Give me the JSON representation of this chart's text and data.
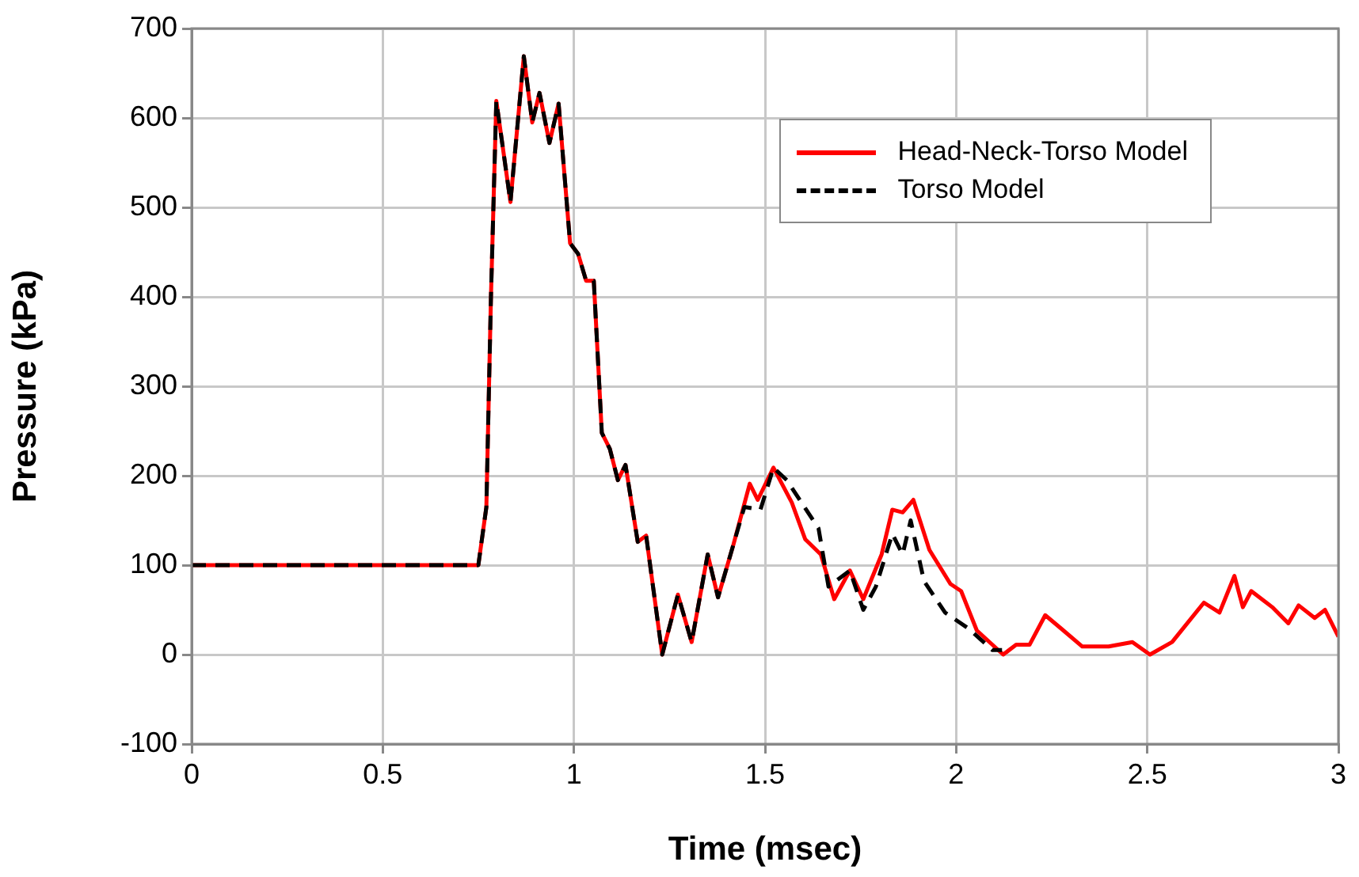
{
  "chart_data": {
    "type": "line",
    "xlabel": "Time (msec)",
    "ylabel": "Pressure (kPa)",
    "xlim": [
      0,
      3
    ],
    "xticks": [
      0,
      0.5,
      1,
      1.5,
      2,
      2.5,
      3
    ],
    "ylim": [
      -100,
      700
    ],
    "yticks": [
      -100,
      0,
      100,
      200,
      300,
      400,
      500,
      600,
      700
    ],
    "grid": true,
    "legend": "top right",
    "marker": "none",
    "series": [
      {
        "name": "Head-Neck-Torso Model",
        "color": "#ff0000",
        "line_style": "solid",
        "x": [
          0,
          0.75,
          0.771,
          0.783,
          0.797,
          0.834,
          0.869,
          0.891,
          0.91,
          0.936,
          0.96,
          0.99,
          1.011,
          1.032,
          1.052,
          1.073,
          1.094,
          1.115,
          1.135,
          1.167,
          1.189,
          1.231,
          1.272,
          1.308,
          1.35,
          1.377,
          1.418,
          1.46,
          1.481,
          1.522,
          1.57,
          1.605,
          1.646,
          1.681,
          1.722,
          1.757,
          1.805,
          1.833,
          1.86,
          1.888,
          1.93,
          1.985,
          2.013,
          2.054,
          2.123,
          2.157,
          2.192,
          2.233,
          2.275,
          2.33,
          2.399,
          2.461,
          2.507,
          2.565,
          2.648,
          2.689,
          2.728,
          2.75,
          2.772,
          2.827,
          2.869,
          2.896,
          2.938,
          2.965,
          3
        ],
        "values": [
          100,
          100,
          165,
          400,
          619,
          506,
          669,
          595,
          628,
          572,
          616,
          460,
          448,
          418,
          418,
          248,
          230,
          195,
          212,
          126,
          133,
          0,
          67,
          14,
          112,
          64,
          124,
          191,
          173,
          209,
          170,
          129,
          112,
          62,
          94,
          62,
          112,
          162,
          159,
          173,
          117,
          79,
          71,
          27,
          0,
          11,
          11,
          44,
          29,
          9,
          9,
          14,
          0,
          14,
          58,
          47,
          88,
          53,
          71,
          53,
          35,
          55,
          41,
          50,
          20
        ]
      },
      {
        "name": "Torso Model",
        "color": "#000000",
        "line_style": "dashed",
        "x": [
          0,
          0.75,
          0.771,
          0.783,
          0.797,
          0.834,
          0.869,
          0.891,
          0.91,
          0.936,
          0.96,
          0.99,
          1.011,
          1.032,
          1.052,
          1.073,
          1.094,
          1.115,
          1.135,
          1.167,
          1.189,
          1.231,
          1.272,
          1.308,
          1.35,
          1.377,
          1.418,
          1.446,
          1.488,
          1.522,
          1.557,
          1.64,
          1.666,
          1.722,
          1.757,
          1.79,
          1.833,
          1.86,
          1.881,
          1.916,
          1.971,
          2.033,
          2.095,
          2.12
        ],
        "values": [
          100,
          100,
          165,
          400,
          619,
          506,
          669,
          595,
          628,
          572,
          616,
          460,
          448,
          418,
          418,
          248,
          230,
          195,
          212,
          126,
          133,
          0,
          67,
          14,
          112,
          64,
          124,
          165,
          162,
          209,
          195,
          141,
          76,
          94,
          50,
          76,
          135,
          112,
          150,
          82,
          47,
          29,
          5,
          5
        ]
      }
    ]
  }
}
